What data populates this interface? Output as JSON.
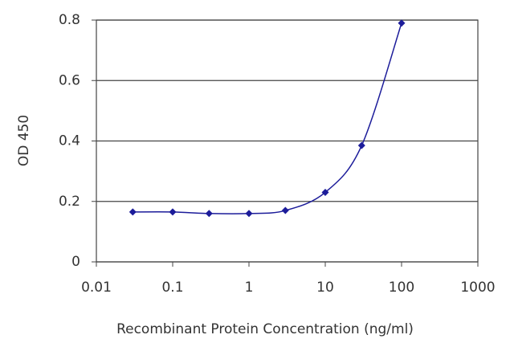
{
  "chart_data": {
    "type": "line",
    "xlabel": "Recombinant Protein Concentration (ng/ml)",
    "ylabel": "OD 450",
    "x": [
      0.03,
      0.1,
      0.3,
      1,
      3,
      10,
      30,
      100
    ],
    "values": [
      0.165,
      0.165,
      0.16,
      0.16,
      0.17,
      0.23,
      0.385,
      0.79
    ],
    "color": "#1c1c9a",
    "xlog": true,
    "xlim": [
      0.01,
      1000
    ],
    "xticks": [
      0.01,
      0.1,
      1,
      10,
      100,
      1000
    ],
    "ylim": [
      0,
      0.8
    ],
    "yticks": [
      0,
      0.2,
      0.4,
      0.6,
      0.8
    ],
    "grid": true
  }
}
